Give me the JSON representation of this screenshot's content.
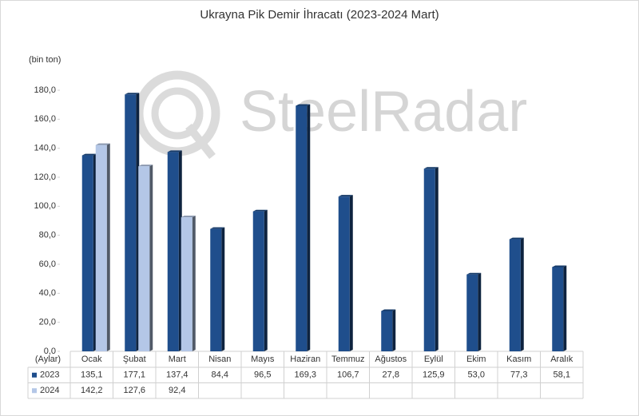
{
  "chart_data": {
    "type": "bar",
    "title": "Ukrayna Pik Demir İhracatı (2023-2024 Mart)",
    "y_label": "(bin ton)",
    "x_label": "(Aylar)",
    "watermark": "SteelRadar",
    "categories": [
      "Ocak",
      "Şubat",
      "Mart",
      "Nisan",
      "Mayıs",
      "Haziran",
      "Temmuz",
      "Ağustos",
      "Eylül",
      "Ekim",
      "Kasım",
      "Aralık"
    ],
    "series": [
      {
        "name": "2023",
        "color": "#1f4e8c",
        "values": [
          135.1,
          177.1,
          137.4,
          84.4,
          96.5,
          169.3,
          106.7,
          27.8,
          125.9,
          53.0,
          77.3,
          58.1
        ],
        "value_labels": [
          "135,1",
          "177,1",
          "137,4",
          "84,4",
          "96,5",
          "169,3",
          "106,7",
          "27,8",
          "125,9",
          "53,0",
          "77,3",
          "58,1"
        ]
      },
      {
        "name": "2024",
        "color": "#b4c7e7",
        "values": [
          142.2,
          127.6,
          92.4,
          null,
          null,
          null,
          null,
          null,
          null,
          null,
          null,
          null
        ],
        "value_labels": [
          "142,2",
          "127,6",
          "92,4",
          null,
          null,
          null,
          null,
          null,
          null,
          null,
          null,
          null
        ]
      }
    ],
    "ylim": [
      0,
      180
    ],
    "yticks": [
      {
        "value": 0,
        "label": "0,0"
      },
      {
        "value": 20,
        "label": "20,0"
      },
      {
        "value": 40,
        "label": "40,0"
      },
      {
        "value": 60,
        "label": "60,0"
      },
      {
        "value": 80,
        "label": "80,0"
      },
      {
        "value": 100,
        "label": "100,0"
      },
      {
        "value": 120,
        "label": "120,0"
      },
      {
        "value": 140,
        "label": "140,0"
      },
      {
        "value": 160,
        "label": "160,0"
      },
      {
        "value": 180,
        "label": "180,0"
      }
    ],
    "grid": false
  }
}
